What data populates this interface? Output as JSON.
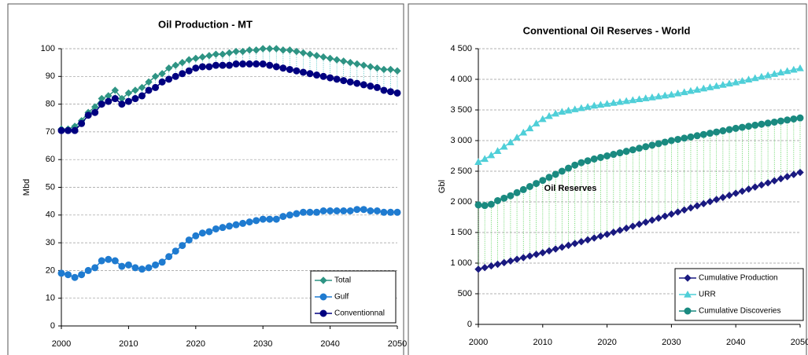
{
  "chart_data": [
    {
      "type": "line",
      "title": "Oil Production - MT",
      "y_label": "Mbd",
      "x": [
        2000,
        2001,
        2002,
        2003,
        2004,
        2005,
        2006,
        2007,
        2008,
        2009,
        2010,
        2011,
        2012,
        2013,
        2014,
        2015,
        2016,
        2017,
        2018,
        2019,
        2020,
        2021,
        2022,
        2023,
        2024,
        2025,
        2026,
        2027,
        2028,
        2029,
        2030,
        2031,
        2032,
        2033,
        2034,
        2035,
        2036,
        2037,
        2038,
        2039,
        2040,
        2041,
        2042,
        2043,
        2044,
        2045,
        2046,
        2047,
        2048,
        2049,
        2050
      ],
      "xlim": [
        2000,
        2050
      ],
      "xticks": [
        2000,
        2010,
        2020,
        2030,
        2040,
        2050
      ],
      "ylim": [
        0,
        100
      ],
      "yticks": [
        0,
        10,
        20,
        30,
        40,
        50,
        60,
        70,
        80,
        90,
        100
      ],
      "grid": true,
      "legend": "lower right",
      "hilo_lines": true,
      "hilo_color": "#33bbbb",
      "series": [
        {
          "name": "Total",
          "color": "#2e9484",
          "marker": "diamond",
          "values": [
            71,
            71,
            72,
            74,
            77,
            79,
            82,
            83,
            85,
            82,
            84,
            85,
            86,
            88,
            90,
            91,
            93,
            94,
            95,
            96,
            96.5,
            97,
            97.5,
            98,
            98,
            98.5,
            99,
            99,
            99.5,
            99.5,
            100,
            100,
            100,
            99.5,
            99.5,
            99,
            98.5,
            98,
            97.5,
            97,
            96.5,
            96,
            95.5,
            95,
            94.5,
            94,
            93.5,
            93,
            92.5,
            92.5,
            92
          ]
        },
        {
          "name": "Gulf",
          "color": "#1f7bd0",
          "marker": "circle",
          "values": [
            19,
            18.5,
            17.5,
            18.5,
            20,
            21,
            23.5,
            24,
            23.5,
            21.5,
            22,
            21,
            20.5,
            21,
            22,
            23,
            25,
            27,
            29,
            31,
            32.5,
            33.5,
            34,
            35,
            35.5,
            36,
            36.5,
            37,
            37.5,
            38,
            38.5,
            38.5,
            38.5,
            39.5,
            40,
            40.5,
            41,
            41,
            41,
            41.5,
            41.5,
            41.5,
            41.5,
            41.5,
            42,
            42,
            41.5,
            41.5,
            41,
            41,
            41
          ]
        },
        {
          "name": "Conventionnal",
          "color": "#000080",
          "marker": "circle",
          "values": [
            70.5,
            70.5,
            70.5,
            73,
            76,
            77,
            80,
            81,
            82,
            80,
            81,
            82,
            83,
            85,
            86,
            88,
            89,
            90,
            91,
            92,
            93,
            93.5,
            93.5,
            94,
            94,
            94,
            94.5,
            94.5,
            94.5,
            94.5,
            94.5,
            94,
            93.5,
            93,
            92.5,
            92,
            91.5,
            91,
            90.5,
            90,
            89.5,
            89,
            88.5,
            88,
            87.5,
            87,
            86.5,
            86,
            85,
            84.5,
            84
          ]
        }
      ]
    },
    {
      "type": "line",
      "title": "Conventional Oil Reserves - World",
      "y_label": "Gbl",
      "annotation": "Oil Reserves",
      "annotation_color": "#1a9a2a",
      "x": [
        2000,
        2001,
        2002,
        2003,
        2004,
        2005,
        2006,
        2007,
        2008,
        2009,
        2010,
        2011,
        2012,
        2013,
        2014,
        2015,
        2016,
        2017,
        2018,
        2019,
        2020,
        2021,
        2022,
        2023,
        2024,
        2025,
        2026,
        2027,
        2028,
        2029,
        2030,
        2031,
        2032,
        2033,
        2034,
        2035,
        2036,
        2037,
        2038,
        2039,
        2040,
        2041,
        2042,
        2043,
        2044,
        2045,
        2046,
        2047,
        2048,
        2049,
        2050
      ],
      "xlim": [
        2000,
        2050
      ],
      "xticks": [
        2000,
        2010,
        2020,
        2030,
        2040,
        2050
      ],
      "ylim": [
        0,
        4500
      ],
      "yticks": [
        0,
        500,
        {
          "value": 1000,
          "label": "1 000"
        },
        {
          "value": 1500,
          "label": "1 500"
        },
        {
          "value": 2000,
          "label": "2 000"
        },
        {
          "value": 2500,
          "label": "2 500"
        },
        {
          "value": 3000,
          "label": "3 000"
        },
        {
          "value": 3500,
          "label": "3 500"
        },
        {
          "value": 4000,
          "label": "4 000"
        },
        {
          "value": 4500,
          "label": "4 500"
        }
      ],
      "grid": true,
      "legend": "lower right",
      "hilo_lines": true,
      "hilo_color": "#44cc44",
      "series": [
        {
          "name": "Cumulative Production",
          "color": "#1a1a80",
          "marker": "diamond",
          "values": [
            900,
            927,
            954,
            981,
            1008,
            1035,
            1062,
            1089,
            1116,
            1143,
            1170,
            1200,
            1230,
            1260,
            1290,
            1320,
            1350,
            1380,
            1410,
            1440,
            1470,
            1503,
            1536,
            1569,
            1602,
            1635,
            1668,
            1701,
            1734,
            1767,
            1800,
            1834,
            1868,
            1902,
            1936,
            1970,
            2004,
            2038,
            2072,
            2106,
            2140,
            2174,
            2208,
            2242,
            2276,
            2310,
            2344,
            2378,
            2412,
            2446,
            2480
          ]
        },
        {
          "name": "URR",
          "color": "#4fcfd8",
          "marker": "triangle",
          "values": [
            2650,
            2700,
            2760,
            2830,
            2900,
            2970,
            3050,
            3130,
            3200,
            3280,
            3350,
            3400,
            3440,
            3470,
            3490,
            3510,
            3530,
            3550,
            3570,
            3585,
            3600,
            3615,
            3630,
            3645,
            3660,
            3675,
            3690,
            3705,
            3720,
            3735,
            3750,
            3770,
            3790,
            3810,
            3830,
            3850,
            3870,
            3890,
            3910,
            3930,
            3950,
            3973,
            3996,
            4019,
            4042,
            4065,
            4088,
            4111,
            4134,
            4157,
            4180
          ]
        },
        {
          "name": "Cumulative Discoveries",
          "color": "#1a8a80",
          "marker": "circle",
          "values": [
            1950,
            1940,
            1960,
            2020,
            2060,
            2100,
            2150,
            2200,
            2250,
            2300,
            2350,
            2400,
            2450,
            2500,
            2550,
            2600,
            2640,
            2670,
            2700,
            2725,
            2750,
            2775,
            2800,
            2825,
            2850,
            2875,
            2900,
            2925,
            2950,
            2975,
            3000,
            3020,
            3040,
            3060,
            3080,
            3100,
            3120,
            3140,
            3160,
            3180,
            3200,
            3217,
            3234,
            3251,
            3268,
            3285,
            3302,
            3319,
            3336,
            3353,
            3370
          ]
        }
      ]
    }
  ]
}
